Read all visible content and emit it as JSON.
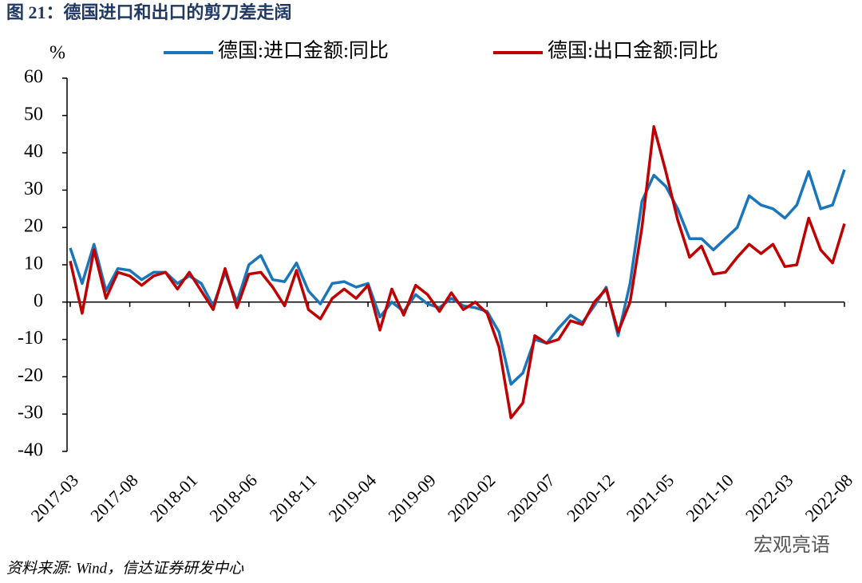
{
  "chart_data": {
    "type": "line",
    "title": "图 21：德国进口和出口的剪刀差走阔",
    "y_label": "%",
    "source": "资料来源: Wind，信达证券研发中心",
    "watermark": "宏观亮语",
    "categories": [
      "2017-03",
      null,
      null,
      null,
      null,
      "2017-08",
      null,
      null,
      null,
      null,
      "2018-01",
      null,
      null,
      null,
      null,
      "2018-06",
      null,
      null,
      null,
      null,
      "2018-11",
      null,
      null,
      null,
      null,
      "2019-04",
      null,
      null,
      null,
      null,
      "2019-09",
      null,
      null,
      null,
      null,
      "2020-02",
      null,
      null,
      null,
      null,
      "2020-07",
      null,
      null,
      null,
      null,
      "2020-12",
      null,
      null,
      null,
      null,
      "2021-05",
      null,
      null,
      null,
      null,
      "2021-10",
      null,
      null,
      null,
      null,
      "2022-03",
      null,
      null,
      null,
      null,
      "2022-08"
    ],
    "series": [
      {
        "name": "德国:进口金额:同比",
        "color": "#1a75bb",
        "values": [
          14.5,
          5,
          15.5,
          3,
          9,
          8.5,
          6,
          8,
          8,
          5,
          7,
          5,
          -1,
          8,
          0,
          10,
          12.5,
          6,
          5.5,
          10.5,
          3,
          -0.5,
          5,
          5.5,
          4,
          5,
          -4,
          0,
          -2.5,
          2,
          -0.5,
          -1.5,
          1,
          -1,
          -1.5,
          -2.5,
          -8,
          -22,
          -19,
          -10,
          -11,
          -7,
          -3.5,
          -5.5,
          -1,
          4,
          -9,
          5,
          27,
          34,
          31,
          25,
          17,
          17,
          14,
          17,
          20,
          28.5,
          26,
          25,
          22.5,
          26,
          35,
          25,
          26,
          35.5
        ]
      },
      {
        "name": "德国:出口金额:同比",
        "color": "#c00000",
        "values": [
          11,
          -3,
          14,
          1,
          8,
          7,
          4.5,
          7,
          8,
          3.5,
          8,
          3,
          -2,
          9,
          -1.5,
          7.5,
          8,
          4,
          -1,
          8.5,
          -2,
          -4.5,
          1,
          3.5,
          1,
          4.5,
          -7.5,
          3.5,
          -3.5,
          4.5,
          2,
          -2.5,
          2.5,
          -2,
          0,
          -3,
          -12,
          -31,
          -27,
          -9,
          -11,
          -10,
          -5,
          -6,
          0,
          3.5,
          -8,
          0,
          20,
          47,
          35,
          22,
          12,
          15,
          7.5,
          8,
          12,
          15.5,
          13,
          15.5,
          9.5,
          10,
          22.5,
          14,
          10.5,
          21
        ]
      }
    ],
    "ylim": [
      -40,
      60
    ],
    "yticks": [
      -40,
      -30,
      -20,
      -10,
      0,
      10,
      20,
      30,
      40,
      50,
      60
    ]
  }
}
